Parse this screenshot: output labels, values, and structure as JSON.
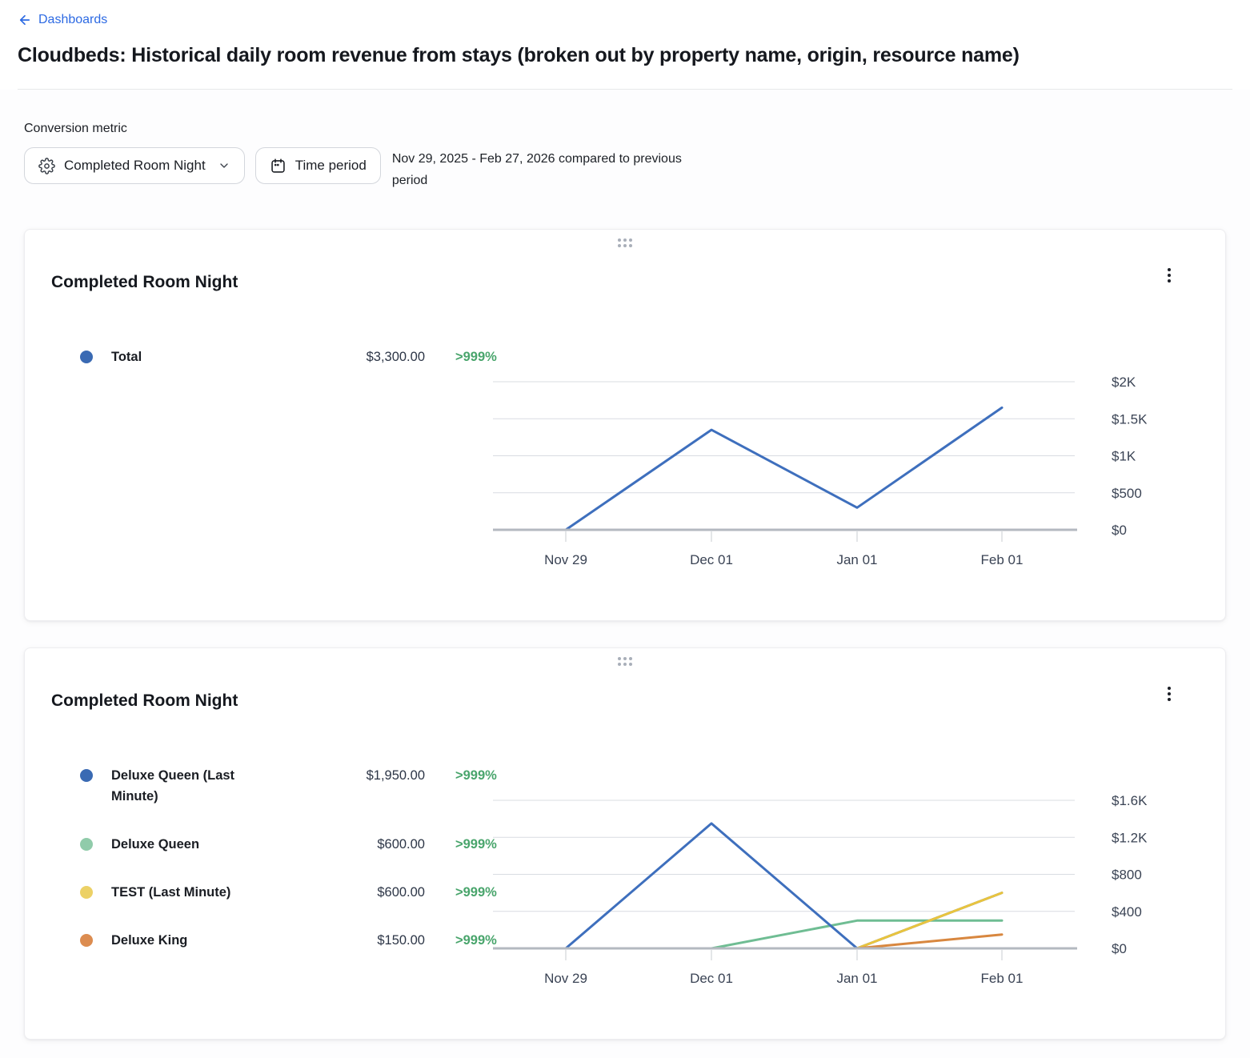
{
  "header": {
    "back_label": "Dashboards",
    "title": "Cloudbeds: Historical daily room revenue from stays (broken out by property name, origin, resource name)"
  },
  "controls": {
    "metric_label": "Conversion metric",
    "metric_button_label": "Completed Room Night",
    "time_period_button_label": "Time period",
    "date_range_text": "Nov 29, 2025 - Feb 27, 2026 compared to previous period"
  },
  "colors": {
    "link_blue": "#2d6ae3",
    "positive_green": "#49a56c",
    "grid_line": "#d9dce2",
    "axis_line": "#b4b9c0",
    "tick_line": "#c9cdd2",
    "axis_text": "#3a4354"
  },
  "chart_data": [
    {
      "type": "line",
      "title": "Completed Room Night",
      "x": [
        "Nov 29",
        "Dec 01",
        "Jan 01",
        "Feb 01"
      ],
      "ylim": [
        0,
        2000
      ],
      "y_ticks": [
        {
          "value": 0,
          "label": "$0"
        },
        {
          "value": 500,
          "label": "$500"
        },
        {
          "value": 1000,
          "label": "$1K"
        },
        {
          "value": 1500,
          "label": "$1.5K"
        },
        {
          "value": 2000,
          "label": "$2K"
        }
      ],
      "grid": true,
      "legend_position": "left",
      "draw_order": [
        0
      ],
      "series": [
        {
          "name": "Total",
          "color": "#3e6fbd",
          "dot_color": "#3a6ab3",
          "values": [
            0,
            1350,
            300,
            1650
          ],
          "total": "$3,300.00",
          "change": ">999%"
        }
      ]
    },
    {
      "type": "line",
      "title": "Completed Room Night",
      "x": [
        "Nov 29",
        "Dec 01",
        "Jan 01",
        "Feb 01"
      ],
      "ylim": [
        0,
        1600
      ],
      "y_ticks": [
        {
          "value": 0,
          "label": "$0"
        },
        {
          "value": 400,
          "label": "$400"
        },
        {
          "value": 800,
          "label": "$800"
        },
        {
          "value": 1200,
          "label": "$1.2K"
        },
        {
          "value": 1600,
          "label": "$1.6K"
        }
      ],
      "grid": true,
      "legend_position": "left",
      "draw_order": [
        1,
        0,
        2,
        3
      ],
      "series": [
        {
          "name": "Deluxe Queen (Last Minute)",
          "color": "#3e6fbd",
          "dot_color": "#3a6ab3",
          "values": [
            0,
            1350,
            0,
            600
          ],
          "total": "$1,950.00",
          "change": ">999%"
        },
        {
          "name": "Deluxe Queen",
          "color": "#6fbd93",
          "dot_color": "#90cbaa",
          "values": [
            0,
            0,
            300,
            300
          ],
          "total": "$600.00",
          "change": ">999%"
        },
        {
          "name": "TEST (Last Minute)",
          "color": "#e9c43e",
          "dot_color": "#ecd166",
          "values": [
            0,
            0,
            0,
            600
          ],
          "total": "$600.00",
          "change": ">999%"
        },
        {
          "name": "Deluxe King",
          "color": "#d8873f",
          "dot_color": "#dc8c50",
          "values": [
            0,
            0,
            0,
            150
          ],
          "total": "$150.00",
          "change": ">999%"
        }
      ]
    }
  ]
}
